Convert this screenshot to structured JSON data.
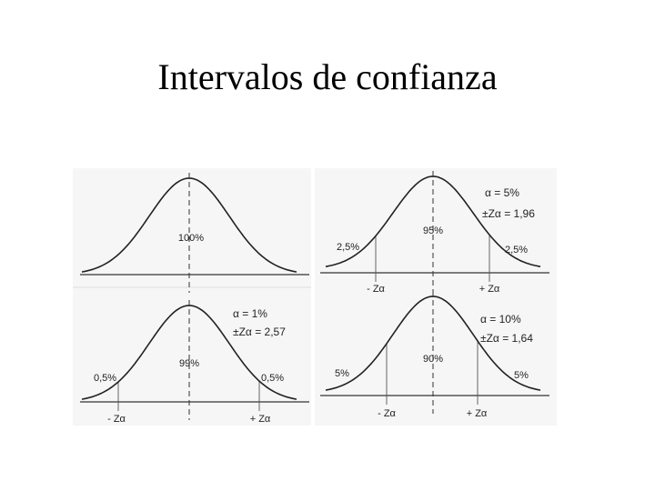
{
  "title": "Intervalos de confianza",
  "panels": [
    {
      "center": "100%"
    },
    {
      "alpha": "α = 1%",
      "z": "±Zα = 2,57",
      "center": "99%",
      "left_tail": "0,5%",
      "right_tail": "0,5%",
      "minus_z": "- Zα",
      "plus_z": "+ Zα"
    },
    {
      "alpha": "α = 5%",
      "z": "±Zα = 1,96",
      "center": "95%",
      "left_tail": "2,5%",
      "right_tail": "2,5%",
      "minus_z": "- Zα",
      "plus_z": "+ Zα"
    },
    {
      "alpha": "α = 10%",
      "z": "±Zα = 1,64",
      "center": "90%",
      "left_tail": "5%",
      "right_tail": "5%",
      "minus_z": "- Zα",
      "plus_z": "+ Zα"
    }
  ]
}
